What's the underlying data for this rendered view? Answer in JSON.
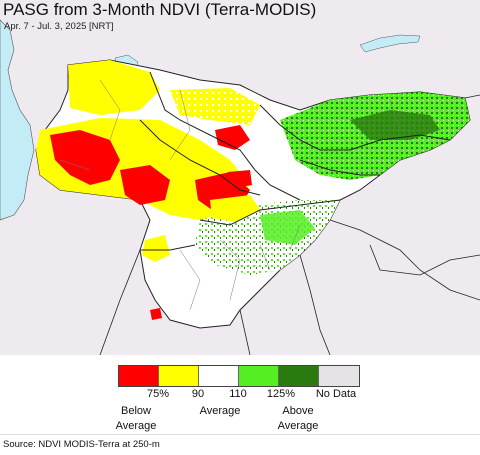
{
  "title": "PASG from 3-Month NDVI (Terra-MODIS)",
  "subtitle": "Apr. 7 - Jul. 3, 2025 [NRT]",
  "source": "Source: NDVI MODIS-Terra at 250-m",
  "colors": {
    "background_land": "#efeaef",
    "water": "#c4ecf6",
    "border": "#222222",
    "below_75": "#ff0000",
    "r75_90": "#ffff00",
    "r90_110": "#ffffff",
    "r110_125": "#55ee22",
    "above_125": "#2a7a10",
    "no_data": "#e6e3e6"
  },
  "legend": {
    "ticks": [
      "75%",
      "90",
      "110",
      "125%",
      "No Data"
    ],
    "categories": [
      "Below\nAverage",
      "Average",
      "Above\nAverage"
    ]
  }
}
